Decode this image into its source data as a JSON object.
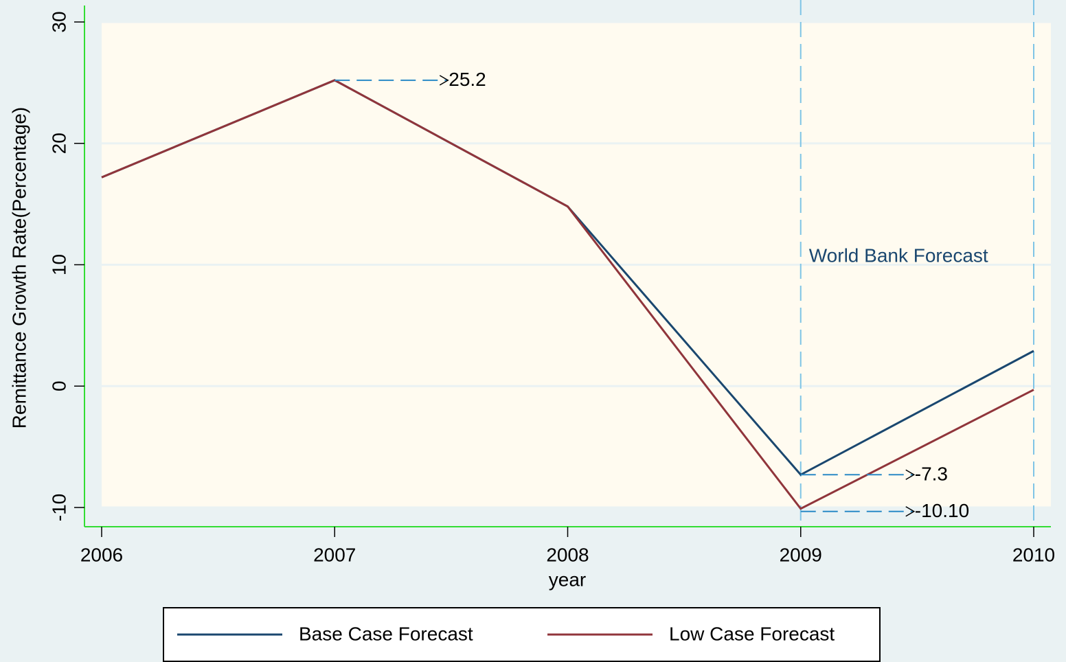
{
  "chart_data": {
    "type": "line",
    "x": [
      2006,
      2007,
      2008,
      2009,
      2010
    ],
    "series": [
      {
        "name": "Base Case Forecast",
        "color": "#1a476f",
        "values": [
          17.2,
          25.2,
          14.8,
          -7.3,
          2.9
        ]
      },
      {
        "name": "Low Case Forecast",
        "color": "#90353b",
        "values": [
          17.2,
          25.2,
          14.8,
          -10.1,
          -0.3
        ]
      }
    ],
    "xlim": [
      2006,
      2010
    ],
    "xticks": [
      2006,
      2007,
      2008,
      2009,
      2010
    ],
    "ylim": [
      -10,
      30
    ],
    "yticks": [
      -10,
      0,
      10,
      20,
      30
    ],
    "xlabel": "year",
    "ylabel": "Remittance Growth Rate(Percentage)",
    "annotations": [
      "25.2",
      "-7.3",
      "-10.10",
      "World Bank Forecast"
    ],
    "grid": true,
    "legend": "bottom"
  }
}
